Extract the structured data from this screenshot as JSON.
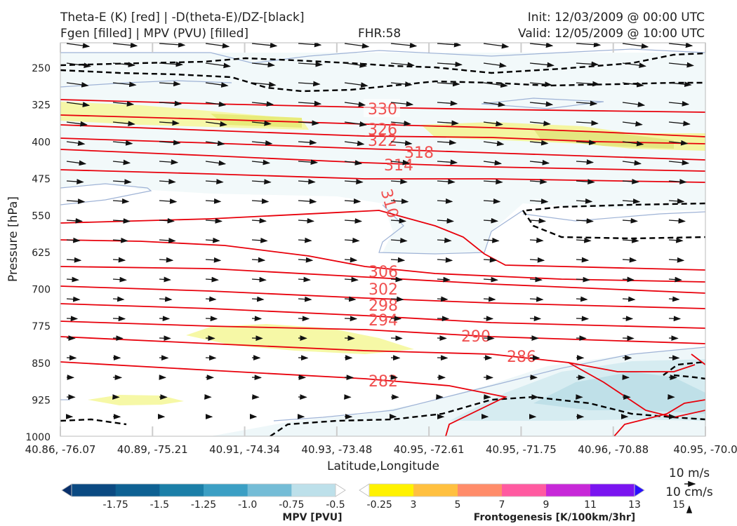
{
  "header": {
    "title_line1": "Theta-E (K) [red] | -D(theta-E)/DZ-[black]",
    "title_line2": "Fgen [filled] | MPV (PVU) [filled]",
    "fhr": "FHR:58",
    "init": "Init: 12/03/2009 @ 00:00 UTC",
    "valid": "Valid: 12/05/2009 @ 10:00 UTC"
  },
  "chart_data": {
    "type": "cross-section",
    "ylabel": "Pressure [hPa]",
    "xlabel": "Latitude,Longitude",
    "y_ticks": [
      250,
      325,
      400,
      475,
      550,
      625,
      700,
      775,
      850,
      925,
      1000
    ],
    "ylim": [
      1000,
      200
    ],
    "x_ticks": [
      "40.86, -76.07",
      "40.89, -75.21",
      "40.91, -74.34",
      "40.93, -73.48",
      "40.95, -72.61",
      "40.95, -71.75",
      "40.96, -70.88",
      "40.95, -70.0"
    ],
    "theta_e_red": {
      "color": "#e8000b",
      "label_color": "#f05050",
      "contours": [
        {
          "value": 330,
          "label": "330"
        },
        {
          "value": 326,
          "label": "326"
        },
        {
          "value": 322,
          "label": "322"
        },
        {
          "value": 318,
          "label": "318"
        },
        {
          "value": 314,
          "label": "314"
        },
        {
          "value": 310,
          "label": "310"
        },
        {
          "value": 306,
          "label": "306"
        },
        {
          "value": 302,
          "label": "302"
        },
        {
          "value": 298,
          "label": "298"
        },
        {
          "value": 294,
          "label": "294"
        },
        {
          "value": 290,
          "label": "290"
        },
        {
          "value": 286,
          "label": "286"
        },
        {
          "value": 282,
          "label": "282"
        }
      ]
    },
    "dthetae_dz_black": {
      "color": "#000000",
      "style": "dashed"
    },
    "mpv_colorbar": {
      "label": "MPV [PVU]",
      "ticks": [
        "-1.75",
        "-1.5",
        "-1.25",
        "-1.0",
        "-0.75",
        "-0.5",
        "-0.25"
      ],
      "colors": [
        "#08306b",
        "#0b4a82",
        "#0e6193",
        "#1b7fa8",
        "#3b9fc4",
        "#74bcd6",
        "#bde0ea",
        "#ffffff"
      ]
    },
    "fgen_colorbar": {
      "label": "Frontogenesis [K/100km/3hr]",
      "ticks": [
        "3",
        "5",
        "7",
        "9",
        "11",
        "13",
        "15"
      ],
      "colors": [
        "#ffffff",
        "#fff200",
        "#ffc040",
        "#ff8c6a",
        "#ff5aa0",
        "#c728d8",
        "#7a14f0",
        "#2a10ff"
      ]
    },
    "wind_key": {
      "horizontal": "10 m/s",
      "vertical": "10 cm/s"
    }
  }
}
